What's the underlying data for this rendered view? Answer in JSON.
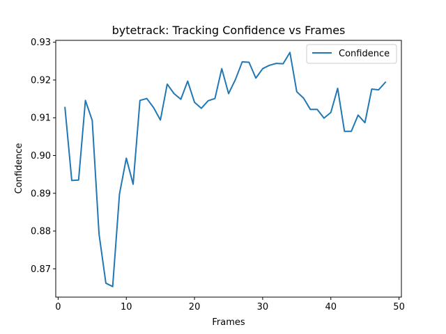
{
  "chart_data": {
    "type": "line",
    "title": "bytetrack: Tracking Confidence vs Frames",
    "xlabel": "Frames",
    "ylabel": "Confidence",
    "xlim": [
      -0.35,
      50.35
    ],
    "ylim": [
      0.8625,
      0.9305
    ],
    "xticks": [
      0,
      10,
      20,
      30,
      40,
      50
    ],
    "yticks": [
      0.87,
      0.88,
      0.89,
      0.9,
      0.91,
      0.92,
      0.93
    ],
    "ytick_labels": [
      "0.87",
      "0.88",
      "0.89",
      "0.90",
      "0.91",
      "0.92",
      "0.93"
    ],
    "grid": false,
    "legend_position": "top-right",
    "series": [
      {
        "name": "Confidence",
        "color": "#1f77b4",
        "x": [
          1,
          2,
          3,
          4,
          5,
          6,
          7,
          8,
          9,
          10,
          11,
          12,
          13,
          14,
          15,
          16,
          17,
          18,
          19,
          20,
          21,
          22,
          23,
          24,
          25,
          26,
          27,
          28,
          29,
          30,
          31,
          32,
          33,
          34,
          35,
          36,
          37,
          38,
          39,
          40,
          41,
          42,
          43,
          44,
          45,
          46,
          47,
          48
        ],
        "y": [
          0.9127,
          0.8934,
          0.8935,
          0.9146,
          0.9093,
          0.8792,
          0.8662,
          0.8653,
          0.8898,
          0.8993,
          0.8924,
          0.9146,
          0.9151,
          0.9127,
          0.9094,
          0.9189,
          0.9164,
          0.9149,
          0.9197,
          0.9141,
          0.9125,
          0.9145,
          0.9151,
          0.923,
          0.9164,
          0.9201,
          0.9248,
          0.9247,
          0.9205,
          0.923,
          0.9239,
          0.9244,
          0.9243,
          0.9273,
          0.9169,
          0.9152,
          0.9122,
          0.9122,
          0.9099,
          0.9114,
          0.9178,
          0.9064,
          0.9064,
          0.9107,
          0.9087,
          0.9176,
          0.9174,
          0.9194
        ]
      }
    ]
  }
}
